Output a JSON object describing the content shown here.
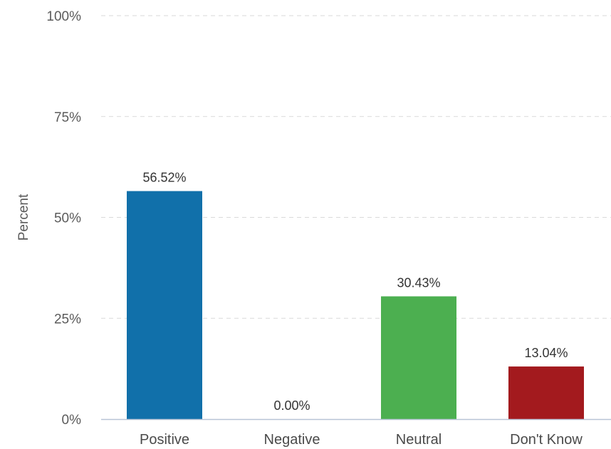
{
  "chart_data": {
    "type": "bar",
    "title": "",
    "xlabel": "",
    "ylabel": "Percent",
    "ylim": [
      0,
      100
    ],
    "yticks": [
      0,
      25,
      50,
      75,
      100
    ],
    "ytick_labels": [
      "0%",
      "25%",
      "50%",
      "75%",
      "100%"
    ],
    "grid": true,
    "legend": "none",
    "categories": [
      "Positive",
      "Negative",
      "Neutral",
      "Don't Know"
    ],
    "values": [
      56.52,
      0.0,
      30.43,
      13.04
    ],
    "data_labels": [
      "56.52%",
      "0.00%",
      "30.43%",
      "13.04%"
    ],
    "colors": [
      "#1170aa",
      "#1170aa",
      "#4caf50",
      "#a31a1e"
    ]
  }
}
